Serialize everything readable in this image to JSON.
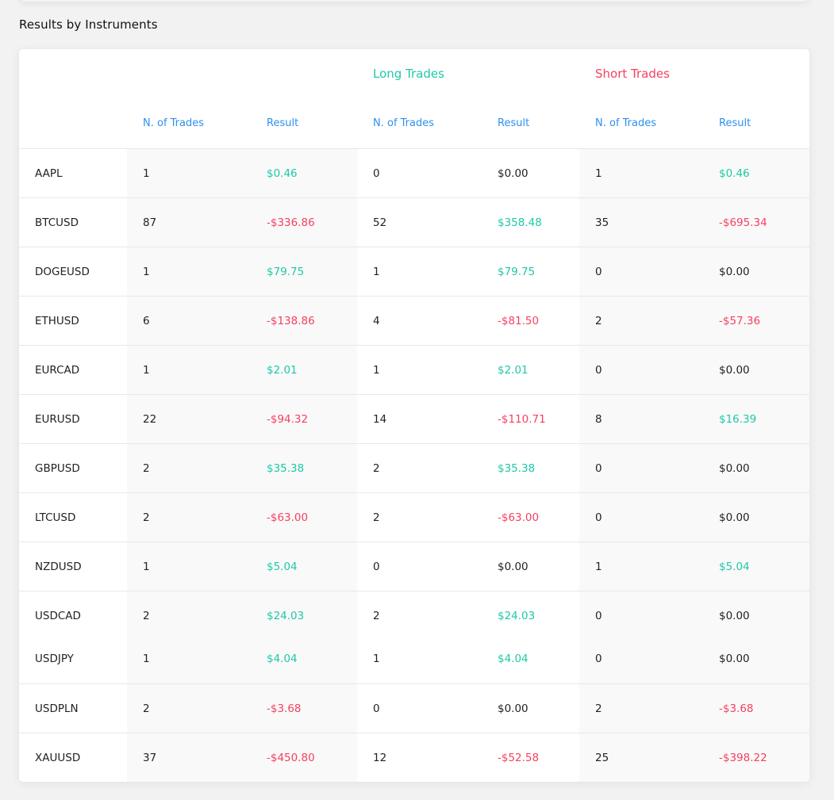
{
  "title": "Results by Instruments",
  "groups": {
    "long": "Long Trades",
    "short": "Short Trades"
  },
  "headers": [
    "N. of Trades",
    "Result",
    "N. of Trades",
    "Result",
    "N. of Trades",
    "Result"
  ],
  "colors": {
    "positive": "#1ec9a8",
    "negative": "#f64060",
    "neutral": "#222222",
    "header": "#2d8ff0"
  },
  "rows": [
    {
      "symbol": "AAPL",
      "total_n": "1",
      "total_result": "$0.46",
      "long_n": "0",
      "long_result": "$0.00",
      "short_n": "1",
      "short_result": "$0.46"
    },
    {
      "symbol": "BTCUSD",
      "total_n": "87",
      "total_result": "-$336.86",
      "long_n": "52",
      "long_result": "$358.48",
      "short_n": "35",
      "short_result": "-$695.34"
    },
    {
      "symbol": "DOGEUSD",
      "total_n": "1",
      "total_result": "$79.75",
      "long_n": "1",
      "long_result": "$79.75",
      "short_n": "0",
      "short_result": "$0.00"
    },
    {
      "symbol": "ETHUSD",
      "total_n": "6",
      "total_result": "-$138.86",
      "long_n": "4",
      "long_result": "-$81.50",
      "short_n": "2",
      "short_result": "-$57.36"
    },
    {
      "symbol": "EURCAD",
      "total_n": "1",
      "total_result": "$2.01",
      "long_n": "1",
      "long_result": "$2.01",
      "short_n": "0",
      "short_result": "$0.00"
    },
    {
      "symbol": "EURUSD",
      "total_n": "22",
      "total_result": "-$94.32",
      "long_n": "14",
      "long_result": "-$110.71",
      "short_n": "8",
      "short_result": "$16.39"
    },
    {
      "symbol": "GBPUSD",
      "total_n": "2",
      "total_result": "$35.38",
      "long_n": "2",
      "long_result": "$35.38",
      "short_n": "0",
      "short_result": "$0.00"
    },
    {
      "symbol": "LTCUSD",
      "total_n": "2",
      "total_result": "-$63.00",
      "long_n": "2",
      "long_result": "-$63.00",
      "short_n": "0",
      "short_result": "$0.00"
    },
    {
      "symbol": "NZDUSD",
      "total_n": "1",
      "total_result": "$5.04",
      "long_n": "0",
      "long_result": "$0.00",
      "short_n": "1",
      "short_result": "$5.04"
    },
    {
      "symbol": "USDCAD",
      "total_n": "2",
      "total_result": "$24.03",
      "long_n": "2",
      "long_result": "$24.03",
      "short_n": "0",
      "short_result": "$0.00"
    },
    {
      "symbol": "USDJPY",
      "total_n": "1",
      "total_result": "$4.04",
      "long_n": "1",
      "long_result": "$4.04",
      "short_n": "0",
      "short_result": "$0.00"
    },
    {
      "symbol": "USDPLN",
      "total_n": "2",
      "total_result": "-$3.68",
      "long_n": "0",
      "long_result": "$0.00",
      "short_n": "2",
      "short_result": "-$3.68"
    },
    {
      "symbol": "XAUUSD",
      "total_n": "37",
      "total_result": "-$450.80",
      "long_n": "12",
      "long_result": "-$52.58",
      "short_n": "25",
      "short_result": "-$398.22"
    }
  ]
}
